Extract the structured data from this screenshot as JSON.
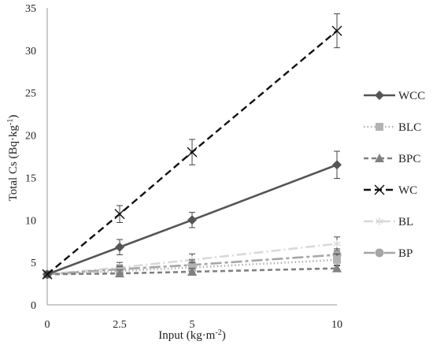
{
  "chart_data": {
    "type": "line",
    "title": "",
    "xlabel": "Input (kg·m",
    "xlabel_sup": "-2",
    "xlabel_tail": ")",
    "ylabel": "Total Cs (Bq·kg",
    "ylabel_sup": "-1",
    "ylabel_tail": ")",
    "x": [
      0,
      2.5,
      5,
      10
    ],
    "x_tick_labels": [
      "0",
      "2.5",
      "5",
      "10"
    ],
    "ylim": [
      0,
      35
    ],
    "y_ticks": [
      0,
      5,
      10,
      15,
      20,
      25,
      30,
      35
    ],
    "y_tick_labels": [
      "0",
      "5",
      "10",
      "15",
      "20",
      "25",
      "30",
      "35"
    ],
    "grid": false,
    "legend_position": "right",
    "series": [
      {
        "name": "WCC",
        "values": [
          3.6,
          6.8,
          10.0,
          16.5
        ],
        "errors": [
          0.3,
          0.9,
          0.9,
          1.6
        ],
        "color": "#555555",
        "dash": "solid",
        "marker": "diamond"
      },
      {
        "name": "BLC",
        "values": [
          3.6,
          4.0,
          4.4,
          5.3
        ],
        "errors": [
          0.3,
          0.5,
          0.6,
          0.7
        ],
        "color": "#b3b3b3",
        "dash": "dotted",
        "marker": "square"
      },
      {
        "name": "BPC",
        "values": [
          3.6,
          3.7,
          3.9,
          4.3
        ],
        "errors": [
          0.3,
          0.4,
          0.4,
          0.4
        ],
        "color": "#808080",
        "dash": "dashed",
        "marker": "triangle"
      },
      {
        "name": "WC",
        "values": [
          3.6,
          10.7,
          18.0,
          32.3
        ],
        "errors": [
          0.3,
          1.0,
          1.5,
          2.0
        ],
        "color": "#111111",
        "dash": "longdash",
        "marker": "x"
      },
      {
        "name": "BL",
        "values": [
          3.6,
          4.4,
          5.3,
          7.2
        ],
        "errors": [
          0.3,
          0.6,
          0.7,
          0.8
        ],
        "color": "#d9d9d9",
        "dash": "dashdot",
        "marker": "star"
      },
      {
        "name": "BP",
        "values": [
          3.6,
          4.2,
          4.7,
          5.9
        ],
        "errors": [
          0.3,
          0.5,
          0.6,
          0.7
        ],
        "color": "#a6a6a6",
        "dash": "longdashdot",
        "marker": "circle"
      }
    ]
  }
}
